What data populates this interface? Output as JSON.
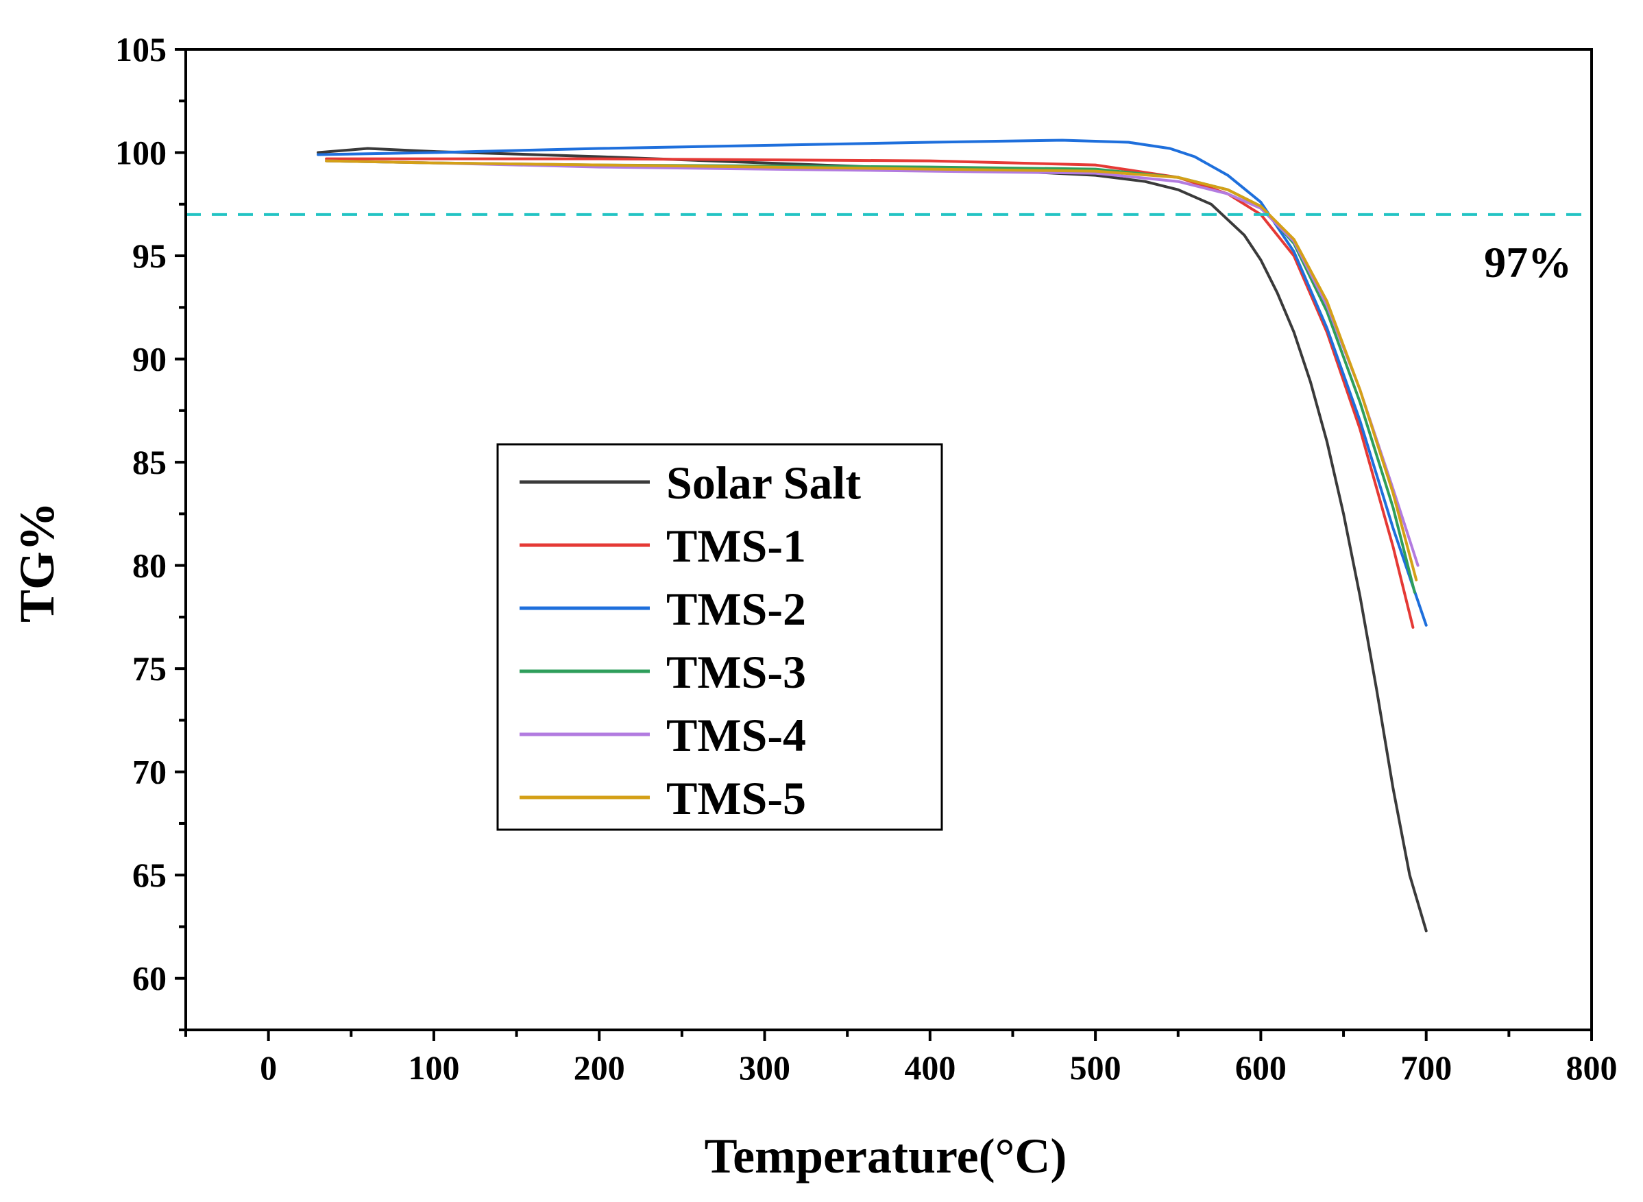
{
  "chart_data": {
    "type": "line",
    "title": "",
    "xlabel": "Temperature(°C)",
    "ylabel": "TG%",
    "xlim": [
      -50,
      800
    ],
    "ylim": [
      57.5,
      105
    ],
    "xticks": [
      0,
      100,
      200,
      300,
      400,
      500,
      600,
      700,
      800
    ],
    "xtick_labels": [
      "0",
      "100",
      "200",
      "300",
      "400",
      "500",
      "600",
      "700",
      "800"
    ],
    "yticks": [
      60,
      65,
      70,
      75,
      80,
      85,
      90,
      95,
      100,
      105
    ],
    "ytick_labels": [
      "60",
      "65",
      "70",
      "75",
      "80",
      "85",
      "90",
      "95",
      "100",
      "105"
    ],
    "grid": false,
    "legend_position": "center-left",
    "reference_line": {
      "y": 97,
      "color": "#22c3c3",
      "style": "dashed"
    },
    "annotation": {
      "text": "97%",
      "x": 735,
      "y": 94.7
    },
    "series": [
      {
        "name": "Solar Salt",
        "color": "#3a3a3a",
        "x": [
          30,
          60,
          100,
          200,
          300,
          400,
          450,
          500,
          530,
          550,
          570,
          590,
          600,
          610,
          620,
          630,
          640,
          650,
          660,
          670,
          680,
          690,
          700
        ],
        "y": [
          100.0,
          100.2,
          100.05,
          99.8,
          99.5,
          99.2,
          99.1,
          98.9,
          98.6,
          98.2,
          97.5,
          96.0,
          94.8,
          93.2,
          91.3,
          88.9,
          86.0,
          82.5,
          78.5,
          74.0,
          69.2,
          65.0,
          62.3
        ]
      },
      {
        "name": "TMS-1",
        "color": "#e53935",
        "x": [
          35,
          100,
          200,
          300,
          400,
          500,
          550,
          580,
          600,
          620,
          640,
          660,
          680,
          692
        ],
        "y": [
          99.7,
          99.7,
          99.7,
          99.65,
          99.6,
          99.4,
          98.8,
          98.0,
          97.0,
          95.0,
          91.3,
          86.6,
          80.9,
          77.0
        ]
      },
      {
        "name": "TMS-2",
        "color": "#1e6fdc",
        "x": [
          30,
          100,
          200,
          300,
          400,
          480,
          520,
          545,
          560,
          580,
          600,
          620,
          640,
          660,
          680,
          700
        ],
        "y": [
          99.9,
          100.0,
          100.2,
          100.35,
          100.5,
          100.6,
          100.5,
          100.2,
          99.8,
          98.9,
          97.6,
          95.2,
          91.5,
          87.0,
          81.8,
          77.1
        ]
      },
      {
        "name": "TMS-3",
        "color": "#2e9e5b",
        "x": [
          35,
          100,
          200,
          300,
          400,
          500,
          550,
          580,
          600,
          620,
          640,
          660,
          680,
          693
        ],
        "y": [
          99.6,
          99.5,
          99.4,
          99.35,
          99.3,
          99.2,
          98.8,
          98.2,
          97.4,
          95.6,
          92.3,
          87.9,
          82.8,
          78.7
        ]
      },
      {
        "name": "TMS-4",
        "color": "#b27be0",
        "x": [
          35,
          100,
          200,
          300,
          400,
          500,
          550,
          580,
          600,
          620,
          640,
          660,
          680,
          695
        ],
        "y": [
          99.6,
          99.5,
          99.3,
          99.2,
          99.1,
          99.0,
          98.6,
          98.0,
          97.3,
          95.7,
          92.6,
          88.5,
          83.7,
          80.0
        ]
      },
      {
        "name": "TMS-5",
        "color": "#d4a017",
        "x": [
          35,
          100,
          200,
          300,
          400,
          500,
          550,
          580,
          600,
          620,
          640,
          660,
          680,
          694
        ],
        "y": [
          99.6,
          99.5,
          99.4,
          99.3,
          99.2,
          99.1,
          98.8,
          98.2,
          97.4,
          95.8,
          92.8,
          88.5,
          83.5,
          79.3
        ]
      }
    ]
  }
}
